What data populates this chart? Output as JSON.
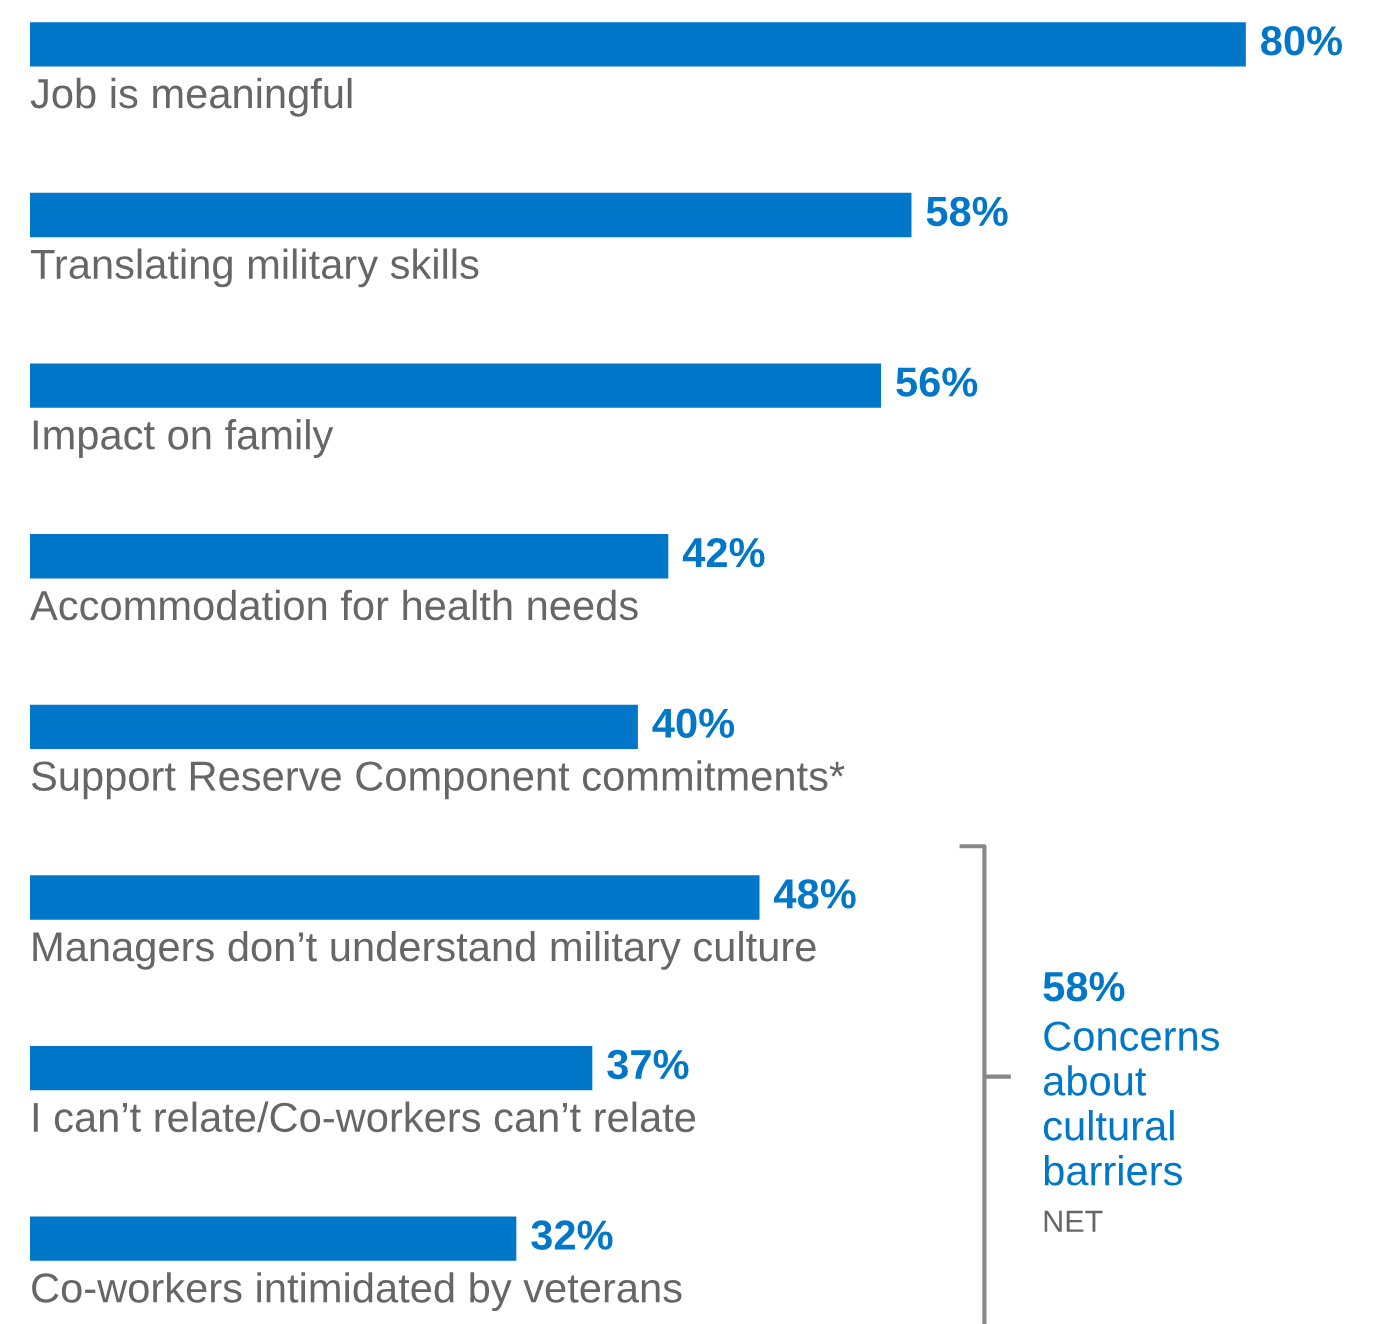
{
  "chart_data": {
    "type": "bar",
    "orientation": "horizontal",
    "categories": [
      "Job is meaningful",
      "Translating military skills",
      "Impact on family",
      "Accommodation for health needs",
      "Support Reserve Component commitments*",
      "Managers don’t understand military culture",
      "I can’t relate/Co-workers can’t relate",
      "Co-workers intimidated by veterans"
    ],
    "values": [
      80,
      58,
      56,
      42,
      40,
      48,
      37,
      32
    ],
    "value_labels": [
      "80%",
      "58%",
      "56%",
      "42%",
      "40%",
      "48%",
      "37%",
      "32%"
    ],
    "color": "#0077c8",
    "annotations": [
      "58%",
      "Concerns\nabout\ncultural\nbarriers",
      "NET"
    ]
  }
}
